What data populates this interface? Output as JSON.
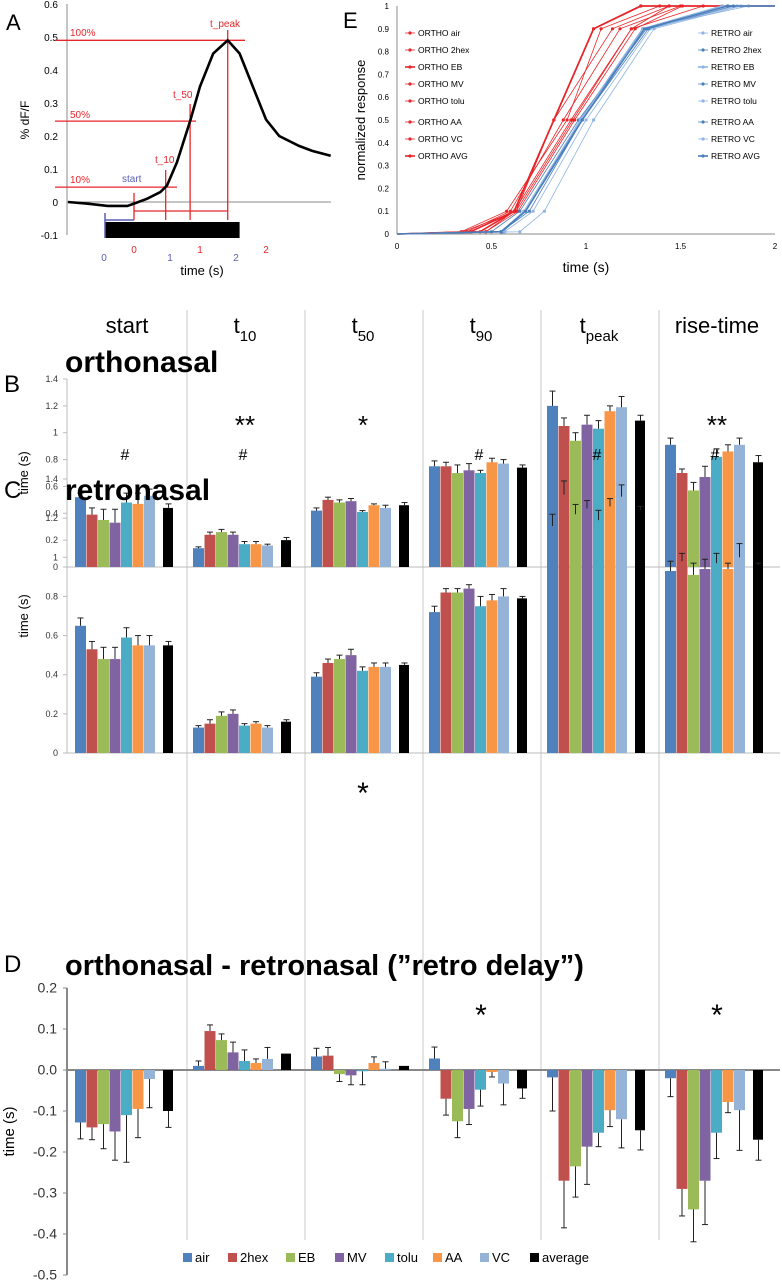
{
  "colors": {
    "air": "#4f81bd",
    "2hex": "#c0504d",
    "EB": "#9bbb59",
    "MV": "#8064a2",
    "tolu": "#4bacc6",
    "AA": "#f79646",
    "VC": "#95b3d7",
    "average": "#000000",
    "ortho": "#e8262a",
    "retro": "#4a7ebb",
    "retro_light": "#8eb4e3",
    "annot_red": "#e8262a",
    "annot_blue": "#5a5fb0"
  },
  "panel_labels": {
    "A": "A",
    "B": "B",
    "C": "C",
    "D": "D",
    "E": "E"
  },
  "chart_data": [
    {
      "id": "A",
      "type": "line",
      "xlabel": "time (s)",
      "ylabel": "% dF/F",
      "ylim": [
        -0.1,
        0.6
      ],
      "yticks": [
        "0.6",
        "0.5",
        "0.4",
        "0.3",
        "0.2",
        "0.1",
        "0",
        "-0.1"
      ],
      "xticks_red": [
        "0",
        "1",
        "2"
      ],
      "xticks_blue": [
        "0",
        "1",
        "2"
      ],
      "trace": {
        "x": [
          -1,
          -0.7,
          -0.4,
          -0.1,
          0,
          0.2,
          0.4,
          0.5,
          0.65,
          0.85,
          1.0,
          1.2,
          1.42,
          1.6,
          1.8,
          2.0,
          2.2,
          2.5,
          2.7,
          2.98
        ],
        "y": [
          0,
          -0.005,
          -0.012,
          -0.012,
          -0.005,
          0.01,
          0.03,
          0.05,
          0.12,
          0.245,
          0.35,
          0.45,
          0.49,
          0.45,
          0.35,
          0.25,
          0.2,
          0.17,
          0.155,
          0.14
        ]
      },
      "stimulus": [
        -0.44,
        1.6
      ],
      "annotations": {
        "p100": "100%",
        "p50": "50%",
        "p10": "10%",
        "start": "start",
        "t10": "t_10",
        "t50": "t_50",
        "tpeak": "t_peak"
      }
    },
    {
      "id": "E",
      "type": "line",
      "xlabel": "time (s)",
      "ylabel": "normalized response",
      "xlim": [
        0,
        2
      ],
      "ylim": [
        0,
        1
      ],
      "xticks": [
        "0",
        "0.5",
        "1",
        "1.5",
        "2"
      ],
      "yticks": [
        "0",
        "0.1",
        "0.2",
        "0.3",
        "0.4",
        "0.5",
        "0.6",
        "0.7",
        "0.8",
        "0.9",
        "1"
      ],
      "y_levels": [
        0,
        0.01,
        0.1,
        0.5,
        0.9,
        1,
        1
      ],
      "series": [
        {
          "name": "ORTHO air",
          "group": "ortho",
          "x": [
            0,
            0.35,
            0.63,
            0.93,
            1.24,
            1.62,
            2
          ]
        },
        {
          "name": "ORTHO 2hex",
          "group": "ortho",
          "x": [
            0,
            0.39,
            0.63,
            0.83,
            1.14,
            1.44,
            2
          ]
        },
        {
          "name": "ORTHO EB",
          "group": "ortho",
          "x": [
            0,
            0.39,
            0.62,
            0.83,
            1.04,
            1.29,
            2
          ]
        },
        {
          "name": "ORTHO MV",
          "group": "ortho",
          "x": [
            0,
            0.34,
            0.58,
            0.9,
            1.08,
            1.39,
            2
          ]
        },
        {
          "name": "ORTHO tolu",
          "group": "ortho",
          "x": [
            0,
            0.37,
            0.6,
            0.88,
            1.18,
            1.5,
            2
          ]
        },
        {
          "name": "ORTHO AA",
          "group": "ortho",
          "x": [
            0,
            0.47,
            0.62,
            0.92,
            1.24,
            1.44,
            2
          ]
        },
        {
          "name": "ORTHO VC",
          "group": "ortho",
          "x": [
            0,
            0.47,
            0.64,
            0.94,
            1.26,
            1.51,
            2
          ]
        },
        {
          "name": "ORTHO AVG",
          "group": "ortho",
          "x": [
            0,
            0.44,
            0.62,
            0.83,
            1.04,
            1.29,
            2
          ]
        },
        {
          "name": "RETRO air",
          "group": "retro",
          "x": [
            0,
            0.65,
            0.78,
            1.04,
            1.36,
            1.82,
            2
          ]
        },
        {
          "name": "RETRO 2hex",
          "group": "retro",
          "x": [
            0,
            0.56,
            0.68,
            0.97,
            1.3,
            1.72,
            2
          ]
        },
        {
          "name": "RETRO EB",
          "group": "retro",
          "x": [
            0,
            0.55,
            0.68,
            0.97,
            1.3,
            1.72,
            2
          ]
        },
        {
          "name": "RETRO MV",
          "group": "retro",
          "x": [
            0,
            0.5,
            0.65,
            0.96,
            1.32,
            1.75,
            2
          ]
        },
        {
          "name": "RETRO tolu",
          "group": "retro",
          "x": [
            0,
            0.57,
            0.72,
            1.0,
            1.34,
            1.8,
            2
          ]
        },
        {
          "name": "RETRO AA",
          "group": "retro",
          "x": [
            0,
            0.55,
            0.7,
            0.98,
            1.33,
            1.78,
            2
          ]
        },
        {
          "name": "RETRO VC",
          "group": "retro",
          "x": [
            0,
            0.55,
            0.67,
            0.97,
            1.3,
            1.86,
            2
          ]
        },
        {
          "name": "RETRO AVG",
          "group": "retro",
          "x": [
            0,
            0.55,
            0.68,
            0.98,
            1.31,
            1.75,
            2
          ]
        }
      ]
    },
    {
      "id": "B",
      "type": "bar",
      "title": "orthonasal",
      "ylabel": "time (s)",
      "ylim": [
        0,
        1.4
      ],
      "yticks": [
        "0",
        "0.2",
        "0.4",
        "0.6",
        "0.8",
        "1",
        "1.2",
        "1.4"
      ],
      "significance": [
        "",
        "**",
        "*",
        "",
        "",
        "**"
      ],
      "groups": [
        {
          "values": [
            0.52,
            0.39,
            0.35,
            0.33,
            0.48,
            0.47,
            0.53,
            0.44
          ],
          "err": [
            0.03,
            0.05,
            0.08,
            0.1,
            0.07,
            0.08,
            0.05,
            0.03
          ]
        },
        {
          "values": [
            0.14,
            0.24,
            0.26,
            0.24,
            0.17,
            0.17,
            0.16,
            0.2
          ],
          "err": [
            0.01,
            0.02,
            0.02,
            0.02,
            0.02,
            0.02,
            0.01,
            0.02
          ]
        },
        {
          "values": [
            0.42,
            0.5,
            0.48,
            0.49,
            0.41,
            0.46,
            0.44,
            0.46
          ],
          "err": [
            0.02,
            0.02,
            0.02,
            0.02,
            0.01,
            0.01,
            0.02,
            0.02
          ]
        },
        {
          "values": [
            0.75,
            0.75,
            0.7,
            0.72,
            0.7,
            0.78,
            0.77,
            0.74
          ],
          "err": [
            0.04,
            0.03,
            0.06,
            0.05,
            0.02,
            0.03,
            0.03,
            0.02
          ]
        },
        {
          "values": [
            1.2,
            1.05,
            0.94,
            1.06,
            1.03,
            1.16,
            1.19,
            1.09
          ],
          "err": [
            0.11,
            0.06,
            0.06,
            0.07,
            0.06,
            0.04,
            0.08,
            0.04
          ]
        },
        {
          "values": [
            0.91,
            0.7,
            0.57,
            0.67,
            0.82,
            0.86,
            0.91,
            0.78
          ],
          "err": [
            0.05,
            0.03,
            0.06,
            0.08,
            0.06,
            0.05,
            0.05,
            0.05
          ]
        }
      ]
    },
    {
      "id": "C",
      "type": "bar",
      "title": "retronasal",
      "ylabel": "time (s)",
      "ylim": [
        0,
        1.4
      ],
      "yticks": [
        "0",
        "0.2",
        "0.4",
        "0.6",
        "0.8",
        "1",
        "1.2",
        "1.4"
      ],
      "significance": [
        "",
        "",
        "*",
        "",
        "",
        ""
      ],
      "significance_vs_ortho": [
        "#",
        "#",
        "",
        "#",
        "#",
        "#"
      ],
      "groups": [
        {
          "values": [
            0.65,
            0.53,
            0.48,
            0.48,
            0.59,
            0.55,
            0.55,
            0.55
          ],
          "err": [
            0.04,
            0.04,
            0.06,
            0.06,
            0.05,
            0.05,
            0.05,
            0.02
          ]
        },
        {
          "values": [
            0.13,
            0.15,
            0.19,
            0.2,
            0.14,
            0.15,
            0.13,
            0.16
          ],
          "err": [
            0.01,
            0.02,
            0.02,
            0.02,
            0.01,
            0.01,
            0.01,
            0.01
          ]
        },
        {
          "values": [
            0.39,
            0.46,
            0.48,
            0.5,
            0.42,
            0.44,
            0.44,
            0.45
          ],
          "err": [
            0.02,
            0.02,
            0.02,
            0.03,
            0.02,
            0.02,
            0.02,
            0.01
          ]
        },
        {
          "values": [
            0.72,
            0.82,
            0.82,
            0.84,
            0.75,
            0.78,
            0.8,
            0.79
          ],
          "err": [
            0.03,
            0.02,
            0.02,
            0.02,
            0.05,
            0.03,
            0.04,
            0.01
          ]
        },
        {
          "values": [
            1.16,
            1.32,
            1.22,
            1.25,
            1.19,
            1.26,
            1.31,
            1.24
          ],
          "err": [
            0.06,
            0.07,
            0.05,
            0.04,
            0.05,
            0.04,
            0.06,
            0.02
          ]
        },
        {
          "values": [
            0.93,
            0.98,
            0.91,
            0.94,
            0.97,
            0.94,
            1.0,
            0.96
          ],
          "err": [
            0.05,
            0.04,
            0.06,
            0.05,
            0.05,
            0.03,
            0.07,
            0.01
          ]
        }
      ]
    },
    {
      "id": "D",
      "type": "bar",
      "title": "orthonasal - retronasal (”retro delay”)",
      "ylabel": "time (s)",
      "ylim": [
        -0.5,
        0.2
      ],
      "yticks": [
        "0.2",
        "0.1",
        "0.0",
        "-0.1",
        "-0.2",
        "-0.3",
        "-0.4",
        "-0.5"
      ],
      "significance": [
        "",
        "",
        "",
        "*",
        "",
        "*"
      ],
      "groups": [
        {
          "values": [
            -0.128,
            -0.14,
            -0.132,
            -0.15,
            -0.11,
            -0.095,
            -0.022,
            -0.1
          ],
          "err": [
            0.04,
            0.03,
            0.06,
            0.07,
            0.115,
            0.07,
            0.07,
            0.04
          ]
        },
        {
          "values": [
            0.01,
            0.095,
            0.073,
            0.043,
            0.022,
            0.017,
            0.027,
            0.04
          ],
          "err": [
            0.012,
            0.015,
            0.015,
            0.025,
            0.027,
            0.01,
            0.028,
            0
          ]
        },
        {
          "values": [
            0.033,
            0.035,
            -0.01,
            -0.013,
            -0.003,
            0.017,
            0.003,
            0.01
          ],
          "err": [
            0.02,
            0.02,
            0.018,
            0.023,
            0.033,
            0.015,
            0.017,
            0
          ]
        },
        {
          "values": [
            0.028,
            -0.07,
            -0.125,
            -0.095,
            -0.048,
            -0.005,
            -0.033,
            -0.045
          ],
          "err": [
            0.028,
            0.04,
            0.04,
            0.038,
            0.04,
            0.012,
            0.052,
            0.024
          ]
        },
        {
          "values": [
            -0.018,
            -0.27,
            -0.235,
            -0.187,
            -0.153,
            -0.098,
            -0.12,
            -0.147
          ],
          "err": [
            0.082,
            0.115,
            0.075,
            0.092,
            0.034,
            0.04,
            0.07,
            0.048
          ]
        },
        {
          "values": [
            -0.02,
            -0.29,
            -0.34,
            -0.27,
            -0.153,
            -0.078,
            -0.098,
            -0.17
          ],
          "err": [
            0.045,
            0.066,
            0.079,
            0.107,
            0.063,
            0.026,
            0.098,
            0.05
          ]
        }
      ]
    }
  ],
  "measures": [
    {
      "main": "start",
      "sub": ""
    },
    {
      "main": "t",
      "sub": "10"
    },
    {
      "main": "t",
      "sub": "50"
    },
    {
      "main": "t",
      "sub": "90"
    },
    {
      "main": "t",
      "sub": "peak"
    },
    {
      "main": "rise-time",
      "sub": ""
    }
  ],
  "legend": [
    {
      "key": "air",
      "label": "air"
    },
    {
      "key": "2hex",
      "label": "2hex"
    },
    {
      "key": "EB",
      "label": "EB"
    },
    {
      "key": "MV",
      "label": "MV"
    },
    {
      "key": "tolu",
      "label": "tolu"
    },
    {
      "key": "AA",
      "label": "AA"
    },
    {
      "key": "VC",
      "label": "VC"
    },
    {
      "key": "average",
      "label": "average"
    }
  ]
}
